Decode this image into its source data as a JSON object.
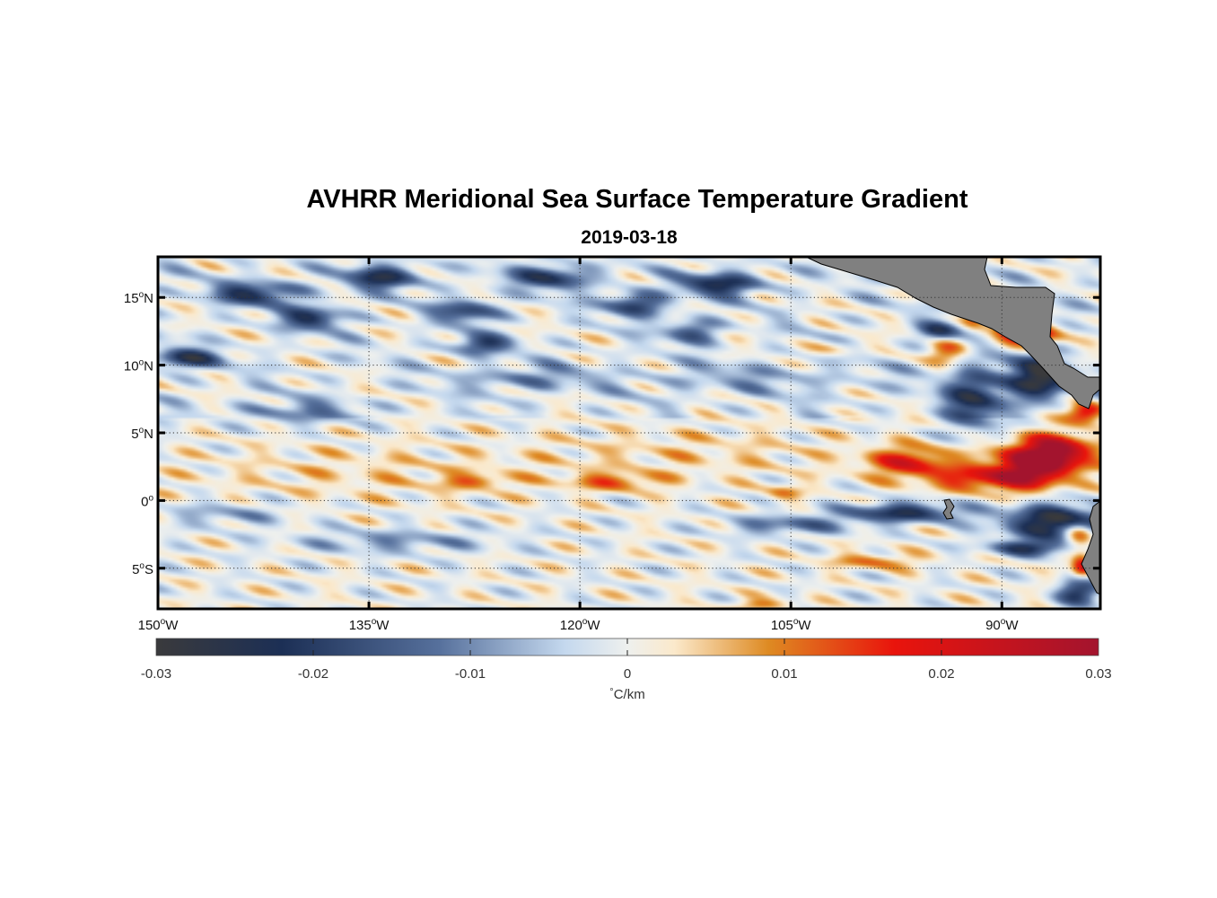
{
  "title": "AVHRR Meridional Sea Surface Temperature Gradient",
  "subtitle": "2019-03-18",
  "map": {
    "lon_range": [
      -150,
      -83
    ],
    "lat_range": [
      -8,
      18
    ],
    "lon_ticks": [
      {
        "value": -150,
        "deg": "150",
        "hemi": "W"
      },
      {
        "value": -135,
        "deg": "135",
        "hemi": "W"
      },
      {
        "value": -120,
        "deg": "120",
        "hemi": "W"
      },
      {
        "value": -105,
        "deg": "105",
        "hemi": "W"
      },
      {
        "value": -90,
        "deg": "90",
        "hemi": "W"
      }
    ],
    "lat_ticks": [
      {
        "value": 15,
        "deg": "15",
        "hemi": "N"
      },
      {
        "value": 10,
        "deg": "10",
        "hemi": "N"
      },
      {
        "value": 5,
        "deg": "5",
        "hemi": "N"
      },
      {
        "value": 0,
        "deg": "0",
        "hemi": ""
      },
      {
        "value": -5,
        "deg": "5",
        "hemi": "S"
      }
    ],
    "grid": "dotted",
    "land_color": "#808080"
  },
  "colorbar": {
    "range": [
      -0.03,
      0.03
    ],
    "tick_labels": [
      "-0.03",
      "-0.02",
      "-0.01",
      "0",
      "0.01",
      "0.02",
      "0.03"
    ],
    "tick_values": [
      -0.03,
      -0.02,
      -0.01,
      0,
      0.01,
      0.02,
      0.03
    ],
    "unit_symbol": "°",
    "unit": "C/km",
    "stops": [
      {
        "v": -0.03,
        "color": "#3a3a3c"
      },
      {
        "v": -0.022,
        "color": "#1c2f55"
      },
      {
        "v": -0.012,
        "color": "#56709c"
      },
      {
        "v": -0.004,
        "color": "#c4d8ee"
      },
      {
        "v": 0.0,
        "color": "#eef0ee"
      },
      {
        "v": 0.003,
        "color": "#fbe9cb"
      },
      {
        "v": 0.009,
        "color": "#de8a22"
      },
      {
        "v": 0.017,
        "color": "#e9140c"
      },
      {
        "v": 0.03,
        "color": "#a3142e"
      }
    ]
  },
  "chart_data": {
    "type": "heatmap",
    "title": "AVHRR Meridional Sea Surface Temperature Gradient",
    "subtitle": "2019-03-18",
    "colorbar_label": "°C/km",
    "features": [
      {
        "lon": -96.5,
        "lat": 2.8,
        "value": 0.018,
        "sigma_lon": 2.2,
        "sigma_lat": 0.8
      },
      {
        "lon": -88.0,
        "lat": 2.5,
        "value": 0.028,
        "sigma_lon": 2.0,
        "sigma_lat": 1.1
      },
      {
        "lon": -86.0,
        "lat": 3.6,
        "value": 0.026,
        "sigma_lon": 1.8,
        "sigma_lat": 0.9
      },
      {
        "lon": -91.5,
        "lat": 1.6,
        "value": 0.016,
        "sigma_lon": 2.5,
        "sigma_lat": 0.6
      },
      {
        "lon": -88.5,
        "lat": 12.3,
        "value": 0.026,
        "sigma_lon": 1.6,
        "sigma_lat": 0.6
      },
      {
        "lon": -84.0,
        "lat": 6.5,
        "value": 0.024,
        "sigma_lon": 0.9,
        "sigma_lat": 0.5
      },
      {
        "lon": -84.5,
        "lat": -2.5,
        "value": 0.022,
        "sigma_lon": 0.8,
        "sigma_lat": 0.7
      },
      {
        "lon": -84.3,
        "lat": -4.8,
        "value": 0.02,
        "sigma_lon": 0.5,
        "sigma_lat": 0.6
      },
      {
        "lon": -94.0,
        "lat": 11.0,
        "value": 0.012,
        "sigma_lon": 1.0,
        "sigma_lat": 0.6
      },
      {
        "lon": -92.0,
        "lat": 13.5,
        "value": 0.01,
        "sigma_lon": 0.6,
        "sigma_lat": 0.5
      },
      {
        "lon": -102.0,
        "lat": 11.2,
        "value": 0.007,
        "sigma_lon": 1.3,
        "sigma_lat": 0.4
      },
      {
        "lon": -117.5,
        "lat": 1.4,
        "value": 0.011,
        "sigma_lon": 2.4,
        "sigma_lat": 0.45
      },
      {
        "lon": -127.5,
        "lat": 1.4,
        "value": 0.009,
        "sigma_lon": 1.8,
        "sigma_lat": 0.35
      },
      {
        "lon": -105.5,
        "lat": 0.6,
        "value": 0.009,
        "sigma_lon": 0.9,
        "sigma_lat": 0.4
      },
      {
        "lon": -99.0,
        "lat": -4.5,
        "value": 0.01,
        "sigma_lon": 2.2,
        "sigma_lat": 0.4
      },
      {
        "lon": -107.0,
        "lat": -7.7,
        "value": 0.01,
        "sigma_lon": 1.4,
        "sigma_lat": 0.3
      },
      {
        "lon": -135.0,
        "lat": 2.0,
        "value": 0.004,
        "sigma_lon": 9.0,
        "sigma_lat": 1.4
      },
      {
        "lon": -112.0,
        "lat": 3.5,
        "value": 0.004,
        "sigma_lon": 8.0,
        "sigma_lat": 1.3
      },
      {
        "lon": -86.0,
        "lat": -1.6,
        "value": -0.03,
        "sigma_lon": 2.6,
        "sigma_lat": 0.9
      },
      {
        "lon": -87.5,
        "lat": 9.0,
        "value": -0.028,
        "sigma_lon": 1.7,
        "sigma_lat": 1.1
      },
      {
        "lon": -92.0,
        "lat": 7.5,
        "value": -0.02,
        "sigma_lon": 1.5,
        "sigma_lat": 1.6
      },
      {
        "lon": -97.0,
        "lat": -0.9,
        "value": -0.022,
        "sigma_lon": 3.0,
        "sigma_lat": 0.5
      },
      {
        "lon": -105.0,
        "lat": -1.8,
        "value": -0.013,
        "sigma_lon": 3.0,
        "sigma_lat": 0.5
      },
      {
        "lon": -94.5,
        "lat": 12.5,
        "value": -0.018,
        "sigma_lon": 1.0,
        "sigma_lat": 0.5
      },
      {
        "lon": -84.5,
        "lat": -6.8,
        "value": -0.022,
        "sigma_lon": 1.1,
        "sigma_lat": 0.6
      },
      {
        "lon": -88.0,
        "lat": -3.5,
        "value": -0.02,
        "sigma_lon": 2.0,
        "sigma_lat": 0.4
      },
      {
        "lon": -143.0,
        "lat": 15.3,
        "value": -0.02,
        "sigma_lon": 2.2,
        "sigma_lat": 0.6
      },
      {
        "lon": -134.0,
        "lat": 16.5,
        "value": -0.022,
        "sigma_lon": 1.8,
        "sigma_lat": 0.6
      },
      {
        "lon": -122.0,
        "lat": 16.5,
        "value": -0.02,
        "sigma_lon": 2.0,
        "sigma_lat": 0.6
      },
      {
        "lon": -110.0,
        "lat": 16.0,
        "value": -0.022,
        "sigma_lon": 2.0,
        "sigma_lat": 0.6
      },
      {
        "lon": -116.0,
        "lat": 14.5,
        "value": -0.02,
        "sigma_lon": 1.5,
        "sigma_lat": 0.6
      },
      {
        "lon": -128.0,
        "lat": 14.0,
        "value": -0.018,
        "sigma_lon": 1.5,
        "sigma_lat": 0.6
      },
      {
        "lon": -139.0,
        "lat": 13.5,
        "value": -0.02,
        "sigma_lon": 1.5,
        "sigma_lat": 0.6
      },
      {
        "lon": -148.0,
        "lat": 10.5,
        "value": -0.022,
        "sigma_lon": 1.6,
        "sigma_lat": 0.5
      },
      {
        "lon": -127.0,
        "lat": 11.5,
        "value": -0.018,
        "sigma_lon": 1.4,
        "sigma_lat": 0.5
      },
      {
        "lon": -112.0,
        "lat": 12.5,
        "value": -0.016,
        "sigma_lon": 1.3,
        "sigma_lat": 0.6
      },
      {
        "lon": -124.0,
        "lat": 9.0,
        "value": -0.01,
        "sigma_lon": 3.0,
        "sigma_lat": 0.6
      },
      {
        "lon": -140.0,
        "lat": 6.5,
        "value": -0.01,
        "sigma_lon": 3.0,
        "sigma_lat": 0.6
      },
      {
        "lon": -133.0,
        "lat": -3.0,
        "value": -0.009,
        "sigma_lon": 5.0,
        "sigma_lat": 0.6
      },
      {
        "lon": -145.0,
        "lat": -1.0,
        "value": -0.008,
        "sigma_lon": 3.0,
        "sigma_lat": 0.6
      },
      {
        "lon": -108.0,
        "lat": 9.0,
        "value": -0.006,
        "sigma_lon": 6.0,
        "sigma_lat": 0.8
      }
    ]
  }
}
